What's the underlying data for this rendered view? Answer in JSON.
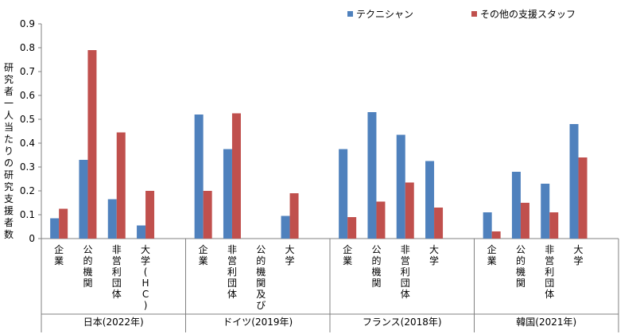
{
  "chart_data": {
    "type": "bar",
    "ylabel": "研究者一人当たりの研究支援者数",
    "ylim": [
      0,
      0.9
    ],
    "yticks": [
      "0",
      "0.1",
      "0.2",
      "0.3",
      "0.4",
      "0.5",
      "0.6",
      "0.7",
      "0.8",
      "0.9"
    ],
    "grid": false,
    "legend_position": "top-right",
    "series": [
      {
        "name": "テクニシャン",
        "color": "#4F81BD"
      },
      {
        "name": "その他の支援スタッフ",
        "color": "#C0504D"
      }
    ],
    "groups": [
      {
        "label": "日本(2022年)",
        "categories": [
          {
            "label": "企業",
            "values": [
              0.085,
              0.125
            ]
          },
          {
            "label": "公的機関",
            "values": [
              0.33,
              0.79
            ]
          },
          {
            "label": "非営利団体",
            "values": [
              0.165,
              0.445
            ]
          },
          {
            "label": "大学(HC)",
            "values": [
              0.055,
              0.2
            ]
          }
        ]
      },
      {
        "label": "ドイツ(2019年)",
        "categories": [
          {
            "label": "企業",
            "values": [
              0.52,
              0.2
            ]
          },
          {
            "label": "非営利団体",
            "values": [
              0.375,
              0.525
            ]
          },
          {
            "label": "公的機関及び",
            "values": [
              null,
              null
            ]
          },
          {
            "label": "大学",
            "values": [
              0.095,
              0.19
            ]
          }
        ]
      },
      {
        "label": "フランス(2018年)",
        "categories": [
          {
            "label": "企業",
            "values": [
              0.375,
              0.09
            ]
          },
          {
            "label": "公的機関",
            "values": [
              0.53,
              0.155
            ]
          },
          {
            "label": "非営利団体",
            "values": [
              0.435,
              0.235
            ]
          },
          {
            "label": "大学",
            "values": [
              0.325,
              0.13
            ]
          }
        ]
      },
      {
        "label": "韓国(2021年)",
        "categories": [
          {
            "label": "企業",
            "values": [
              0.11,
              0.03
            ]
          },
          {
            "label": "公的機関",
            "values": [
              0.28,
              0.15
            ]
          },
          {
            "label": "非営利団体",
            "values": [
              0.23,
              0.11
            ]
          },
          {
            "label": "大学",
            "values": [
              0.48,
              0.34
            ]
          }
        ]
      }
    ]
  }
}
